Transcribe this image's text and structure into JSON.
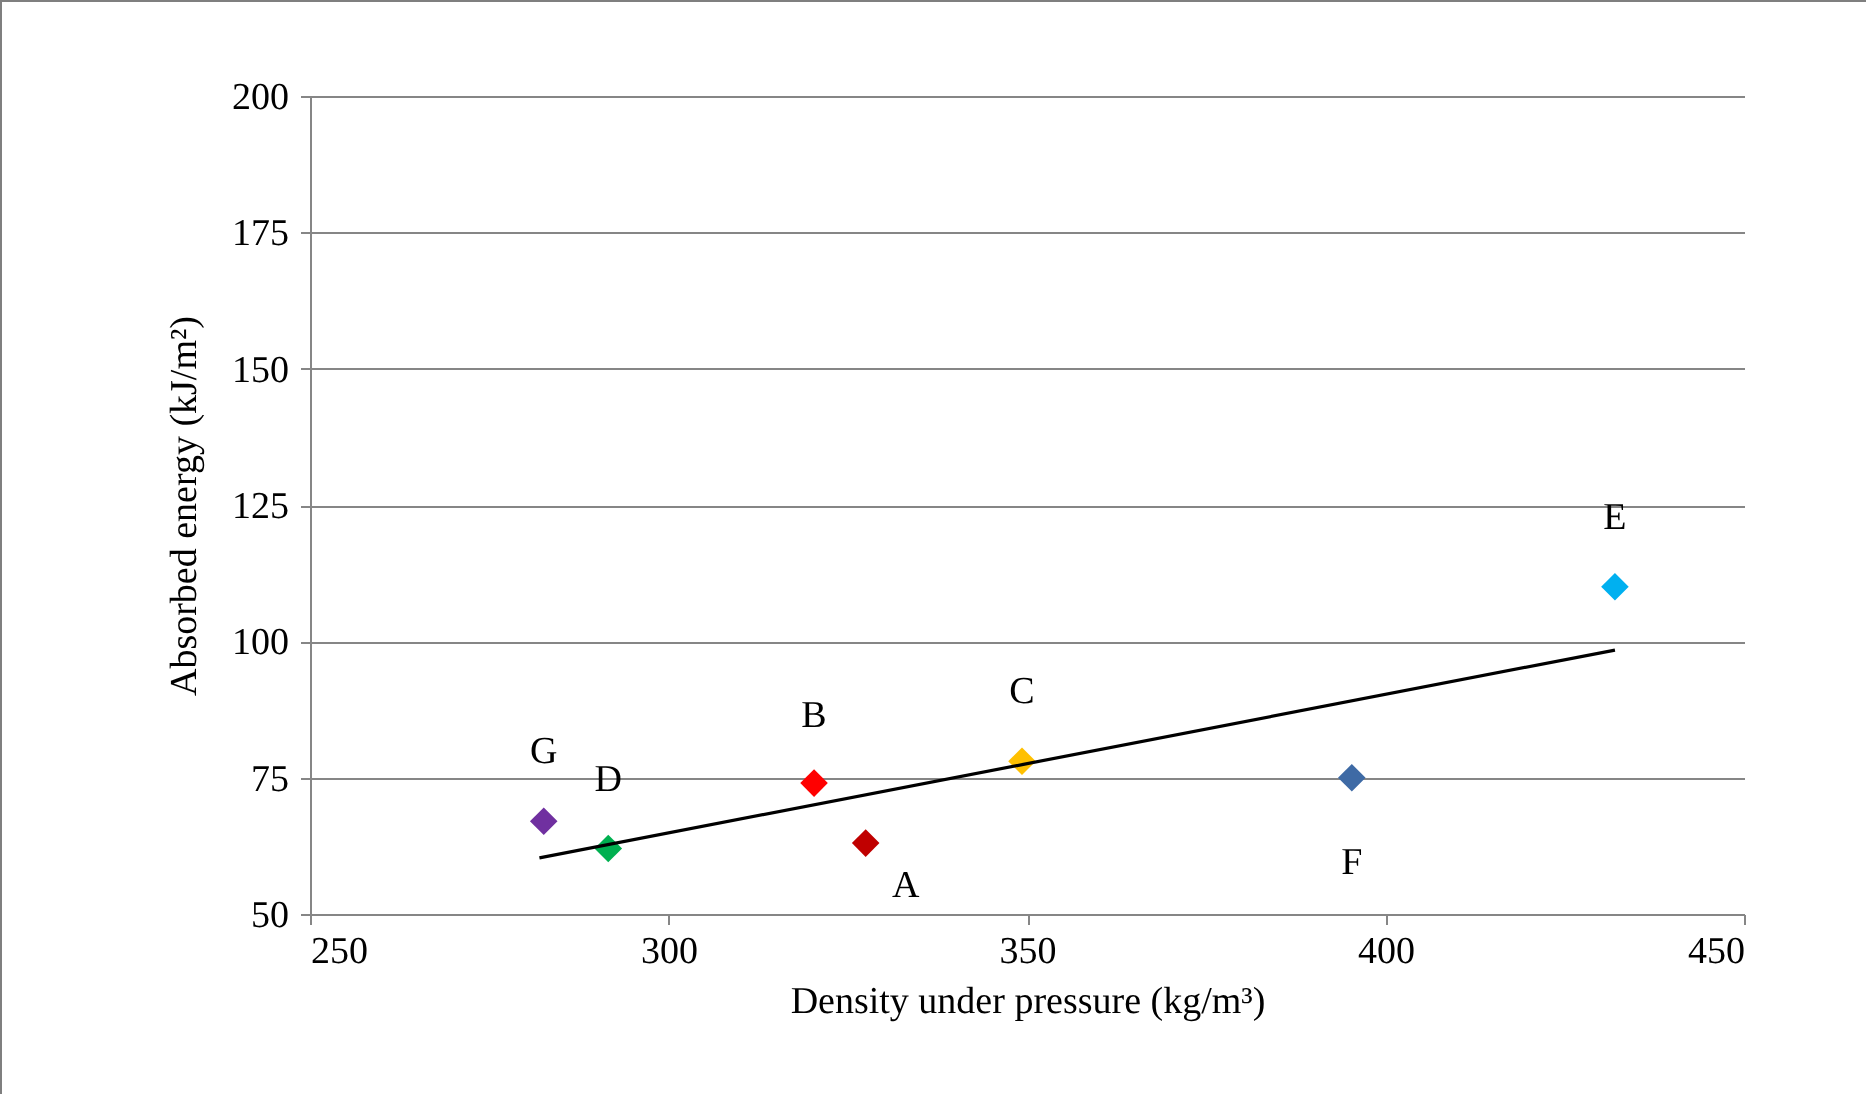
{
  "chart_data": {
    "type": "scatter",
    "xlabel": "Density under pressure (kg/m³)",
    "ylabel": "Absorbed energy (kJ/m²)",
    "xlim": [
      250,
      450
    ],
    "xticks": [
      250,
      300,
      350,
      400,
      450
    ],
    "ylim": [
      50,
      200
    ],
    "yticks": [
      50,
      75,
      100,
      125,
      150,
      175,
      200
    ],
    "grid": "y",
    "marker": "diamond",
    "series": [
      {
        "name": "G",
        "color": "#7030a0",
        "x": [
          282.6
        ],
        "values": [
          67
        ]
      },
      {
        "name": "D",
        "color": "#00b050",
        "x": [
          291.6
        ],
        "values": [
          62
        ]
      },
      {
        "name": "B",
        "color": "#ff0000",
        "x": [
          320.3
        ],
        "values": [
          74
        ]
      },
      {
        "name": "A",
        "color": "#c00000",
        "x": [
          327.5
        ],
        "values": [
          63
        ]
      },
      {
        "name": "C",
        "color": "#ffc000",
        "x": [
          349.3
        ],
        "values": [
          78
        ]
      },
      {
        "name": "F",
        "color": "#3e6aa5",
        "x": [
          395.3
        ],
        "values": [
          75
        ]
      },
      {
        "name": "E",
        "color": "#00b0f0",
        "x": [
          432
        ],
        "values": [
          110
        ]
      },
      {
        "type": "line",
        "color": "#000000",
        "x": [
          282,
          432
        ],
        "values": [
          60.3,
          98.4
        ],
        "line_style": "solid",
        "marker": "none"
      }
    ]
  }
}
